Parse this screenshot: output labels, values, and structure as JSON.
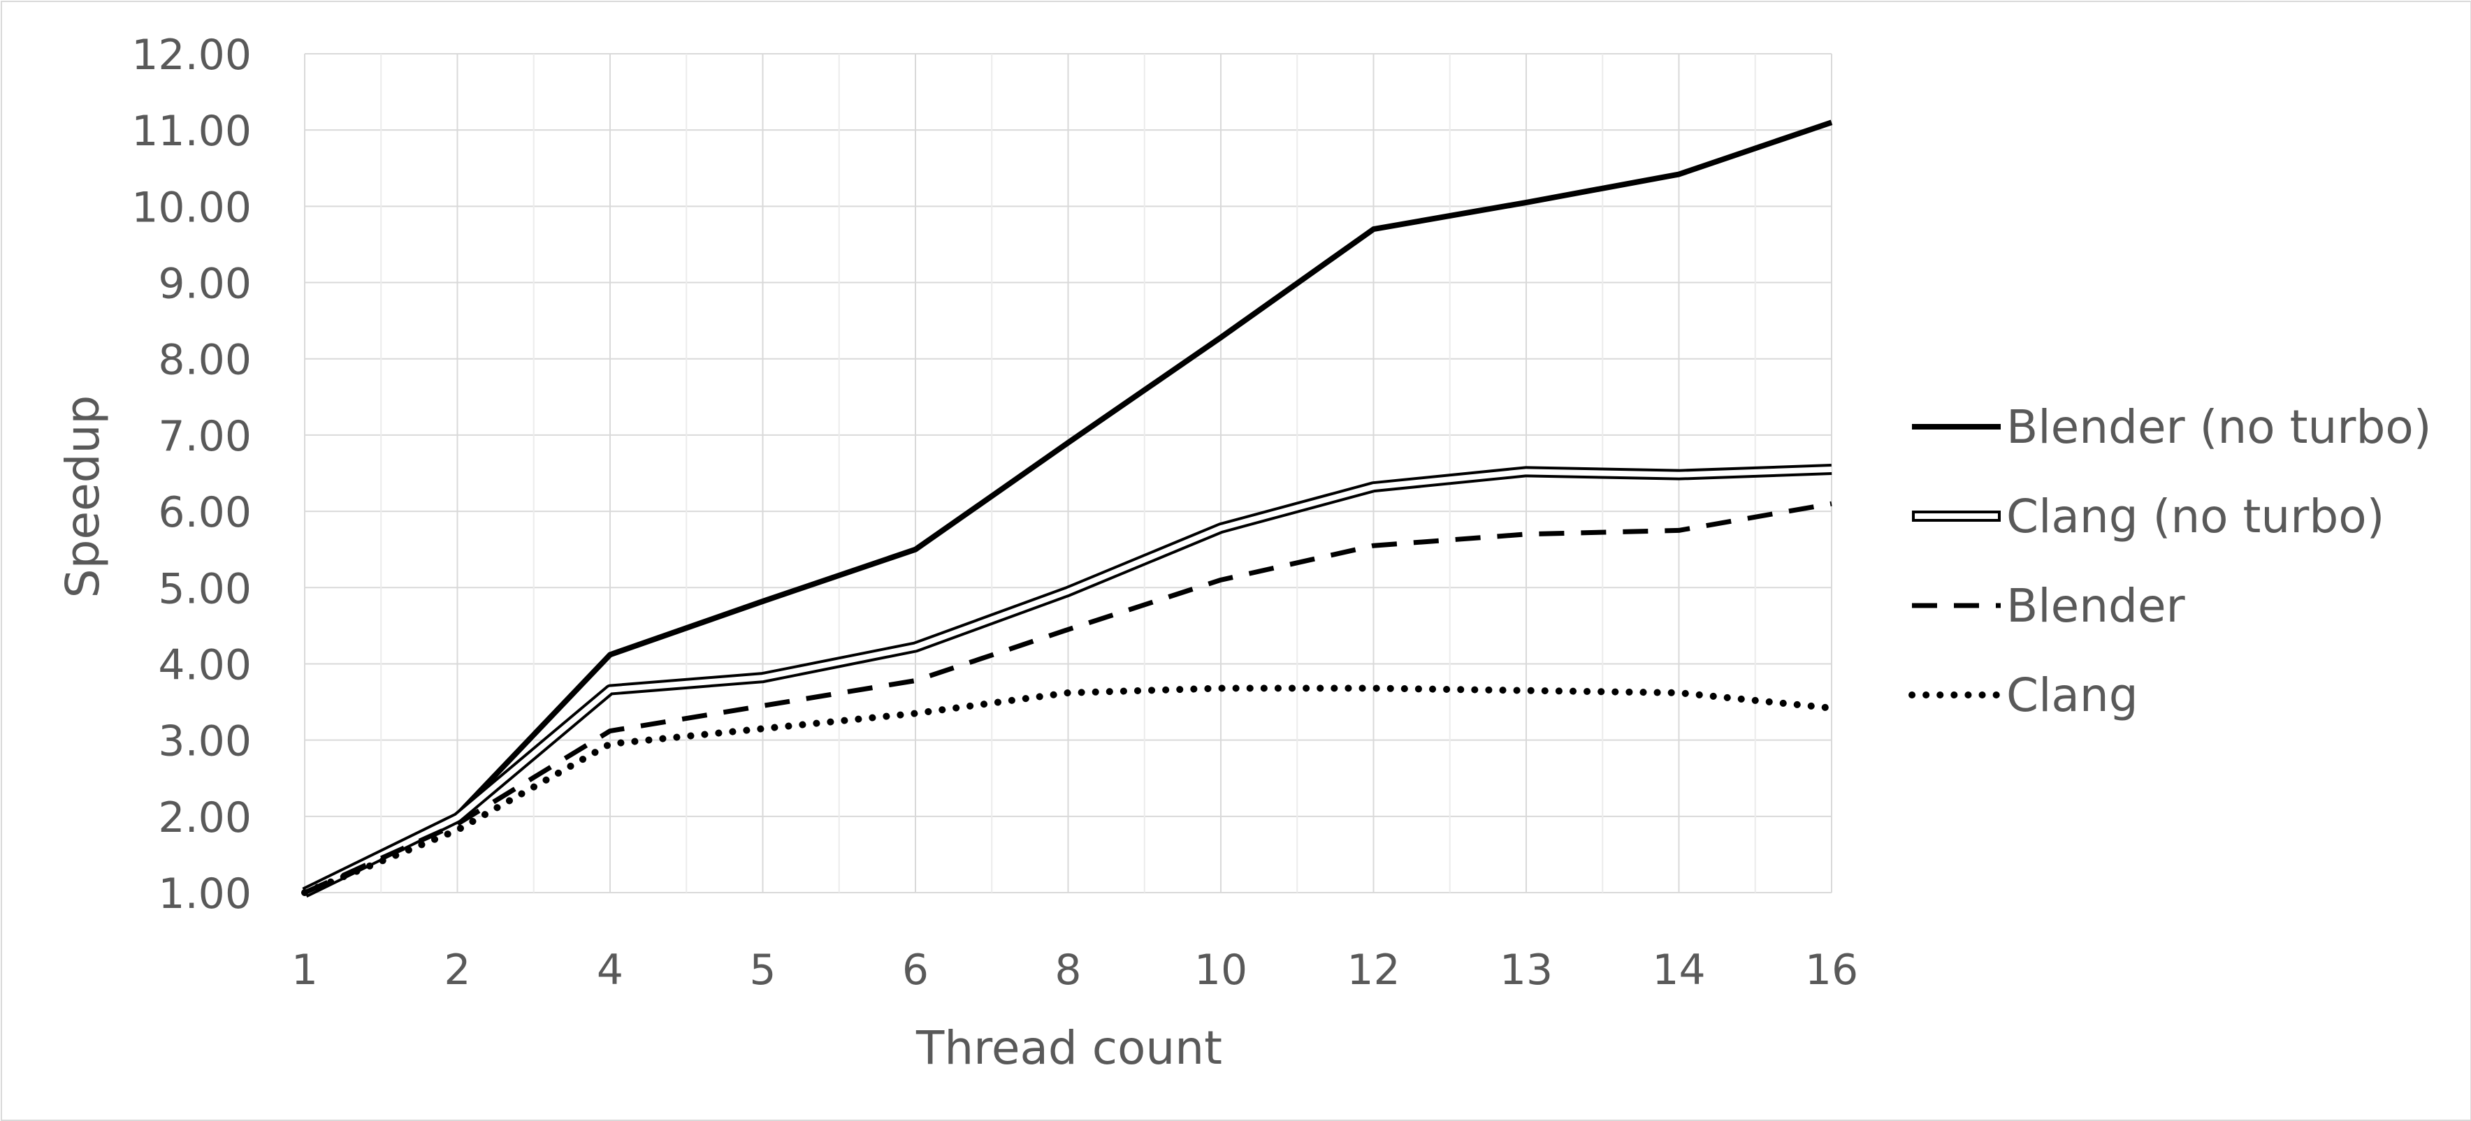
{
  "chart_data": {
    "type": "line",
    "title": "",
    "xlabel": "Thread count",
    "ylabel": "Speedup",
    "categories": [
      "1",
      "2",
      "4",
      "5",
      "6",
      "8",
      "10",
      "12",
      "13",
      "14",
      "16"
    ],
    "ylim": [
      1.0,
      12.0
    ],
    "y_ticks": [
      "1.00",
      "2.00",
      "3.00",
      "4.00",
      "5.00",
      "6.00",
      "7.00",
      "8.00",
      "9.00",
      "10.00",
      "11.00",
      "12.00"
    ],
    "grid": true,
    "legend_position": "right",
    "series": [
      {
        "name": "Blender (no turbo)",
        "style": "solid-thick",
        "color": "#000000",
        "values": [
          1.0,
          2.02,
          4.12,
          4.82,
          5.5,
          6.9,
          8.28,
          9.7,
          10.05,
          10.42,
          11.1
        ]
      },
      {
        "name": "Clang (no turbo)",
        "style": "double",
        "color": "#000000",
        "values": [
          1.0,
          1.98,
          3.66,
          3.82,
          4.22,
          4.95,
          5.78,
          6.32,
          6.52,
          6.48,
          6.55
        ]
      },
      {
        "name": "Blender",
        "style": "dashed",
        "color": "#000000",
        "values": [
          1.0,
          1.9,
          3.12,
          3.45,
          3.78,
          4.45,
          5.1,
          5.55,
          5.7,
          5.75,
          6.1
        ]
      },
      {
        "name": "Clang",
        "style": "dotted",
        "color": "#000000",
        "values": [
          1.0,
          1.82,
          2.95,
          3.15,
          3.35,
          3.62,
          3.68,
          3.68,
          3.65,
          3.62,
          3.42
        ]
      }
    ]
  }
}
